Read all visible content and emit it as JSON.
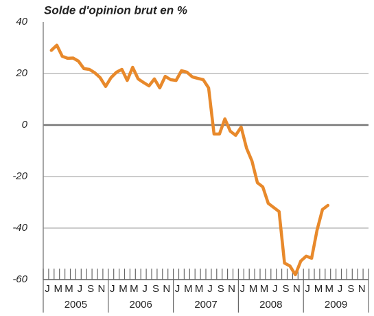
{
  "chart_data": {
    "type": "line",
    "title": "Solde d'opinion brut en %",
    "categories": [
      "J",
      null,
      "M",
      null,
      "M",
      null,
      "J",
      null,
      "S",
      null,
      "N",
      null,
      "J",
      null,
      "M",
      null,
      "M",
      null,
      "J",
      null,
      "S",
      null,
      "N",
      null,
      "J",
      null,
      "M",
      null,
      "M",
      null,
      "J",
      null,
      "S",
      null,
      "N",
      null,
      "J",
      null,
      "M",
      null,
      "M",
      null,
      "J",
      null,
      "S",
      null,
      "N",
      null,
      "J",
      null,
      "M",
      null,
      "M",
      null,
      "J",
      null,
      "S",
      null,
      "N",
      null
    ],
    "years": [
      "2005",
      "2006",
      "2007",
      "2008",
      "2009"
    ],
    "values": [
      null,
      29,
      31,
      26.7,
      25.9,
      26,
      24.8,
      21.9,
      21.6,
      20.3,
      18.4,
      15,
      18.4,
      20.5,
      21.6,
      17.3,
      22.4,
      17.9,
      16.5,
      15.2,
      17.9,
      14.4,
      18.9,
      17.6,
      17.3,
      21.1,
      20.5,
      18.7,
      18.1,
      17.6,
      14.4,
      -3.5,
      -3.5,
      2.4,
      -2.4,
      -4,
      -0.8,
      -9,
      -14,
      -22.4,
      -24,
      -30.4,
      -32,
      -33.6,
      -53.6,
      -54.7,
      -58.1,
      -52.8,
      -50.9,
      -51.7,
      -40.8,
      -32.8,
      -31.2,
      null,
      null,
      null,
      null,
      null,
      null,
      null
    ],
    "color": "#e8892b",
    "ylim": [
      -60,
      40
    ],
    "yticks": [
      40,
      20,
      0,
      -20,
      -40,
      -60
    ],
    "grid": true
  }
}
